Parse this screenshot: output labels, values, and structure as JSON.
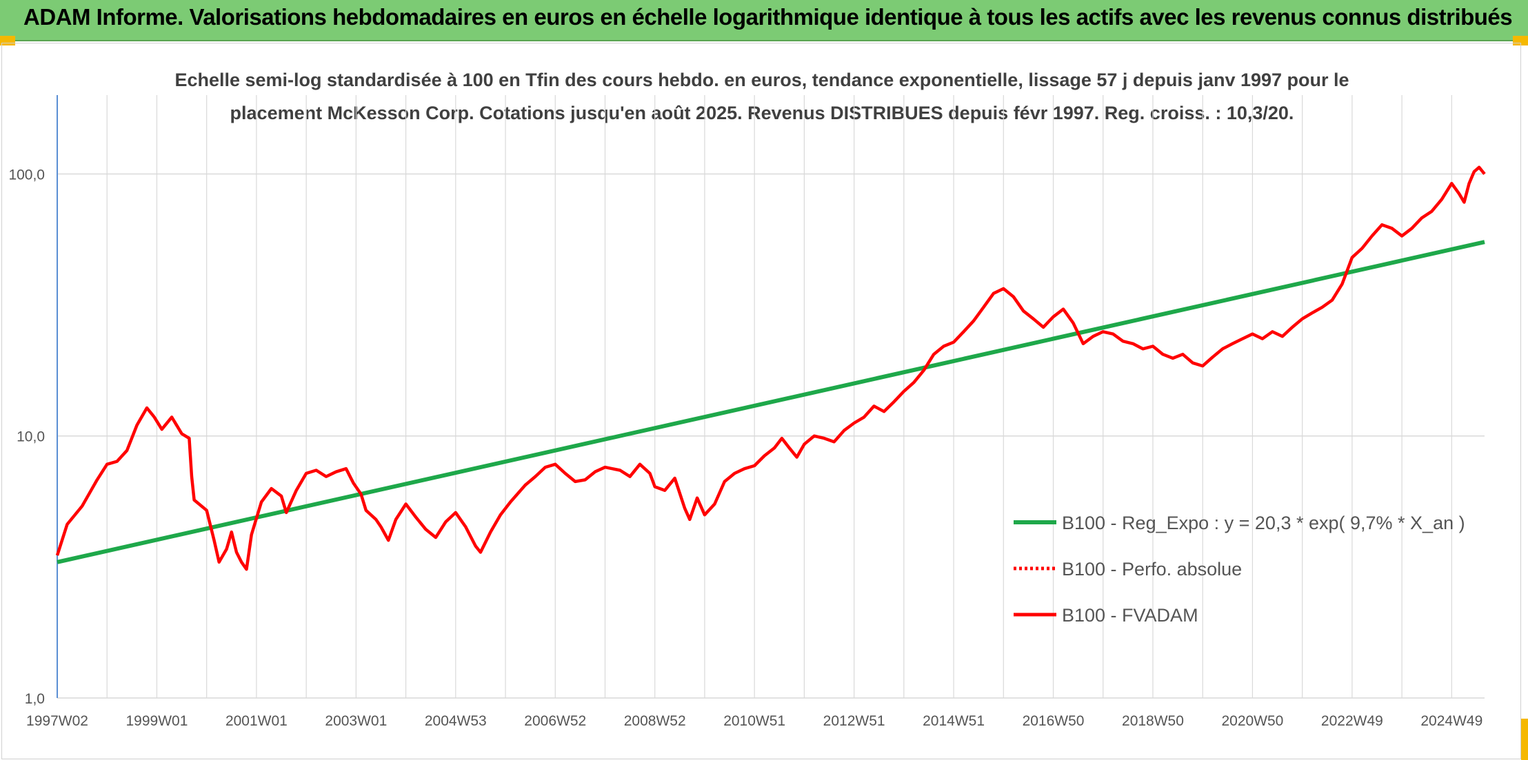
{
  "header": {
    "title": "ADAM Informe. Valorisations hebdomadaires en euros en échelle logarithmique identique à tous les actifs avec les revenus connus distribués"
  },
  "colors": {
    "header_bg": "#7ccb74",
    "corner": "#f5b800",
    "trend": "#1ea84a",
    "fvadam": "#ff0000",
    "perfo": "#ff0000",
    "grid": "#d9d9d9"
  },
  "chart_data": {
    "type": "line",
    "title": "",
    "subtitle_line1": "Echelle semi-log standardisée à 100 en Tfin des cours hebdo. en euros, tendance exponentielle, lissage 57 j depuis janv 1997 pour le",
    "subtitle_line2": "placement McKesson Corp. Cotations jusqu'en août 2025. Revenus DISTRIBUES depuis févr 1997. Reg. croiss. : 10,3/20.",
    "y_scale": "log",
    "ylim": [
      1,
      200
    ],
    "y_ticks": [
      {
        "value": 1,
        "label": "1,0"
      },
      {
        "value": 10,
        "label": "10,0"
      },
      {
        "value": 100,
        "label": "100,0"
      }
    ],
    "xlim": [
      1997.0,
      2025.66
    ],
    "x_ticks": [
      {
        "value": 1997.0,
        "label": "1997W02"
      },
      {
        "value": 1999.0,
        "label": "1999W01"
      },
      {
        "value": 2001.0,
        "label": "2001W01"
      },
      {
        "value": 2003.0,
        "label": "2003W01"
      },
      {
        "value": 2005.0,
        "label": "2004W53"
      },
      {
        "value": 2007.0,
        "label": "2006W52"
      },
      {
        "value": 2009.0,
        "label": "2008W52"
      },
      {
        "value": 2011.0,
        "label": "2010W51"
      },
      {
        "value": 2013.0,
        "label": "2012W51"
      },
      {
        "value": 2015.0,
        "label": "2014W51"
      },
      {
        "value": 2017.0,
        "label": "2016W50"
      },
      {
        "value": 2019.0,
        "label": "2018W50"
      },
      {
        "value": 2021.0,
        "label": "2020W50"
      },
      {
        "value": 2023.0,
        "label": "2022W49"
      },
      {
        "value": 2025.0,
        "label": "2024W49"
      }
    ],
    "grid": true,
    "legend_position": "bottom-right",
    "series": [
      {
        "name": "B100 - Reg_Expo : y = 20,3 * exp( 9,7% *  X_an )",
        "style": "solid",
        "points": [
          [
            1997.0,
            3.3
          ],
          [
            2025.66,
            55
          ]
        ]
      },
      {
        "name": "B100 - Perfo. absolue",
        "style": "dotted",
        "points": []
      },
      {
        "name": "B100 - FVADAM",
        "style": "solid",
        "points": [
          [
            1997.0,
            3.5
          ],
          [
            1997.2,
            4.6
          ],
          [
            1997.5,
            5.4
          ],
          [
            1997.8,
            6.8
          ],
          [
            1998.0,
            7.8
          ],
          [
            1998.2,
            8.0
          ],
          [
            1998.4,
            8.8
          ],
          [
            1998.6,
            11.0
          ],
          [
            1998.8,
            12.8
          ],
          [
            1998.95,
            11.8
          ],
          [
            1999.1,
            10.6
          ],
          [
            1999.3,
            11.8
          ],
          [
            1999.5,
            10.2
          ],
          [
            1999.65,
            9.8
          ],
          [
            1999.7,
            7.0
          ],
          [
            1999.75,
            5.7
          ],
          [
            2000.0,
            5.2
          ],
          [
            2000.15,
            4.0
          ],
          [
            2000.25,
            3.3
          ],
          [
            2000.4,
            3.7
          ],
          [
            2000.5,
            4.3
          ],
          [
            2000.6,
            3.6
          ],
          [
            2000.7,
            3.3
          ],
          [
            2000.8,
            3.1
          ],
          [
            2000.9,
            4.2
          ],
          [
            2001.1,
            5.6
          ],
          [
            2001.3,
            6.3
          ],
          [
            2001.5,
            5.9
          ],
          [
            2001.6,
            5.1
          ],
          [
            2001.8,
            6.2
          ],
          [
            2002.0,
            7.2
          ],
          [
            2002.2,
            7.4
          ],
          [
            2002.4,
            7.0
          ],
          [
            2002.6,
            7.3
          ],
          [
            2002.8,
            7.5
          ],
          [
            2002.95,
            6.6
          ],
          [
            2003.1,
            6.0
          ],
          [
            2003.2,
            5.2
          ],
          [
            2003.4,
            4.8
          ],
          [
            2003.5,
            4.5
          ],
          [
            2003.65,
            4.0
          ],
          [
            2003.8,
            4.8
          ],
          [
            2004.0,
            5.5
          ],
          [
            2004.2,
            4.9
          ],
          [
            2004.4,
            4.4
          ],
          [
            2004.6,
            4.1
          ],
          [
            2004.8,
            4.7
          ],
          [
            2005.0,
            5.1
          ],
          [
            2005.2,
            4.5
          ],
          [
            2005.4,
            3.8
          ],
          [
            2005.5,
            3.6
          ],
          [
            2005.7,
            4.3
          ],
          [
            2005.9,
            5.0
          ],
          [
            2006.1,
            5.6
          ],
          [
            2006.4,
            6.5
          ],
          [
            2006.6,
            7.0
          ],
          [
            2006.8,
            7.6
          ],
          [
            2007.0,
            7.8
          ],
          [
            2007.2,
            7.2
          ],
          [
            2007.4,
            6.7
          ],
          [
            2007.6,
            6.8
          ],
          [
            2007.8,
            7.3
          ],
          [
            2008.0,
            7.6
          ],
          [
            2008.3,
            7.4
          ],
          [
            2008.5,
            7.0
          ],
          [
            2008.7,
            7.8
          ],
          [
            2008.9,
            7.2
          ],
          [
            2009.0,
            6.4
          ],
          [
            2009.2,
            6.2
          ],
          [
            2009.4,
            6.9
          ],
          [
            2009.6,
            5.3
          ],
          [
            2009.7,
            4.8
          ],
          [
            2009.85,
            5.8
          ],
          [
            2010.0,
            5.0
          ],
          [
            2010.2,
            5.5
          ],
          [
            2010.4,
            6.7
          ],
          [
            2010.6,
            7.2
          ],
          [
            2010.8,
            7.5
          ],
          [
            2011.0,
            7.7
          ],
          [
            2011.2,
            8.4
          ],
          [
            2011.4,
            9.0
          ],
          [
            2011.55,
            9.8
          ],
          [
            2011.7,
            9.0
          ],
          [
            2011.85,
            8.3
          ],
          [
            2012.0,
            9.3
          ],
          [
            2012.2,
            10.0
          ],
          [
            2012.4,
            9.8
          ],
          [
            2012.6,
            9.5
          ],
          [
            2012.8,
            10.5
          ],
          [
            2013.0,
            11.2
          ],
          [
            2013.2,
            11.8
          ],
          [
            2013.4,
            13.0
          ],
          [
            2013.6,
            12.4
          ],
          [
            2013.8,
            13.5
          ],
          [
            2014.0,
            14.8
          ],
          [
            2014.2,
            16.0
          ],
          [
            2014.4,
            17.8
          ],
          [
            2014.6,
            20.5
          ],
          [
            2014.8,
            22.0
          ],
          [
            2015.0,
            22.8
          ],
          [
            2015.2,
            25.0
          ],
          [
            2015.4,
            27.5
          ],
          [
            2015.6,
            31.0
          ],
          [
            2015.8,
            35.0
          ],
          [
            2016.0,
            36.5
          ],
          [
            2016.2,
            34.0
          ],
          [
            2016.4,
            30.0
          ],
          [
            2016.6,
            28.0
          ],
          [
            2016.8,
            26.0
          ],
          [
            2017.0,
            28.5
          ],
          [
            2017.2,
            30.5
          ],
          [
            2017.4,
            27.0
          ],
          [
            2017.6,
            22.5
          ],
          [
            2017.8,
            24.0
          ],
          [
            2018.0,
            25.0
          ],
          [
            2018.2,
            24.5
          ],
          [
            2018.4,
            23.0
          ],
          [
            2018.6,
            22.5
          ],
          [
            2018.8,
            21.5
          ],
          [
            2019.0,
            22.0
          ],
          [
            2019.2,
            20.5
          ],
          [
            2019.4,
            19.8
          ],
          [
            2019.6,
            20.5
          ],
          [
            2019.8,
            19.0
          ],
          [
            2020.0,
            18.5
          ],
          [
            2020.2,
            20.0
          ],
          [
            2020.4,
            21.5
          ],
          [
            2020.6,
            22.5
          ],
          [
            2020.8,
            23.5
          ],
          [
            2021.0,
            24.5
          ],
          [
            2021.2,
            23.5
          ],
          [
            2021.4,
            25.0
          ],
          [
            2021.6,
            24.0
          ],
          [
            2021.8,
            26.0
          ],
          [
            2022.0,
            28.0
          ],
          [
            2022.2,
            29.5
          ],
          [
            2022.4,
            31.0
          ],
          [
            2022.6,
            33.0
          ],
          [
            2022.8,
            38.0
          ],
          [
            2023.0,
            48.0
          ],
          [
            2023.2,
            52.0
          ],
          [
            2023.4,
            58.0
          ],
          [
            2023.6,
            64.0
          ],
          [
            2023.8,
            62.0
          ],
          [
            2024.0,
            58.0
          ],
          [
            2024.2,
            62.0
          ],
          [
            2024.4,
            68.0
          ],
          [
            2024.6,
            72.0
          ],
          [
            2024.8,
            80.0
          ],
          [
            2025.0,
            92.0
          ],
          [
            2025.15,
            84.0
          ],
          [
            2025.25,
            78.0
          ],
          [
            2025.35,
            92.0
          ],
          [
            2025.45,
            102.0
          ],
          [
            2025.55,
            106.0
          ],
          [
            2025.66,
            100.0
          ]
        ]
      }
    ]
  }
}
